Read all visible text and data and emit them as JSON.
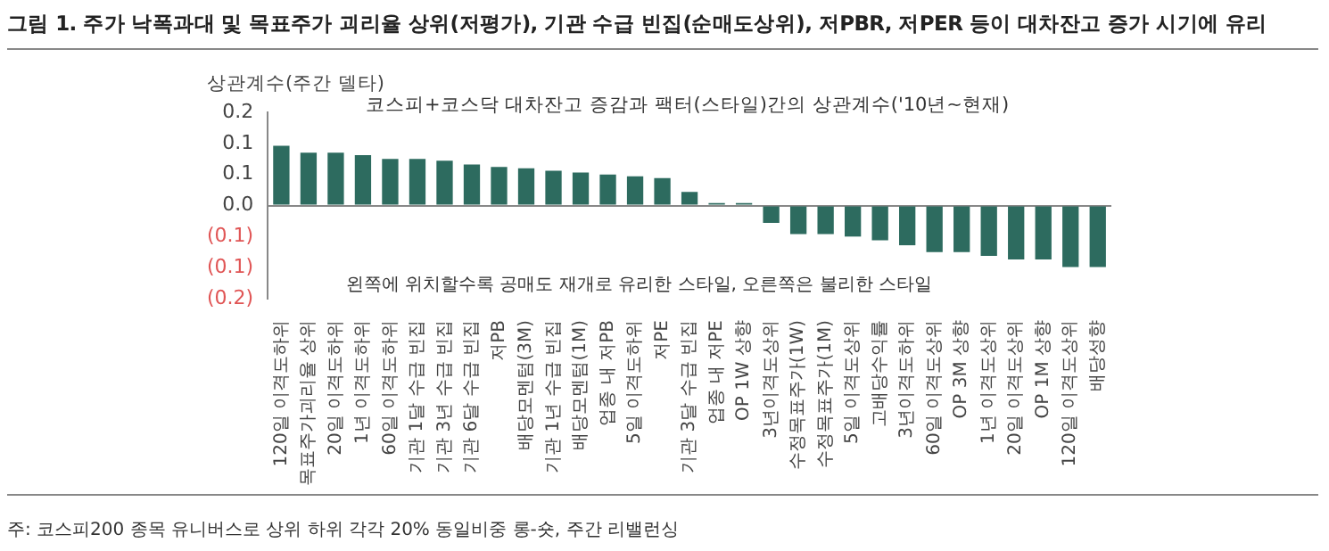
{
  "chart_data": {
    "type": "bar",
    "title": "그림 1. 주가 낙폭과대 및 목표주가 괴리율 상위(저평가), 기관 수급 빈집(순매도상위), 저PBR, 저PER 등이 대차잔고 증가 시기에 유리",
    "subtitle": "코스피+코스닥 대차잔고 증감과 팩터(스타일)간의 상관계수('10년~현재)",
    "ylabel": "상관계수(주간 델타)",
    "categories": [
      "120일 이격도하위",
      "목표주가괴리율 상위",
      "20일 이격도하위",
      "1년 이격도하위",
      "60일 이격도하위",
      "기관 1달 수급 빈집",
      "기관 3년 수급 빈집",
      "기관 6달 수급 빈집",
      "저PB",
      "배당모멘텀(3M)",
      "기관 1년 수급 빈집",
      "배당모멘텀(1M)",
      "업종 내 저PB",
      "5일 이격도하위",
      "저PE",
      "기관 3달 수급 빈집",
      "업종 내 저PE",
      "OP 1W 상향",
      "3년이격도상위",
      "수정목표주가(1W)",
      "수정목표주가(1M)",
      "5일 이격도상위",
      "고배당수익률",
      "3년이격도하위",
      "60일 이격도상위",
      "OP 3M 상향",
      "1년 이격도상위",
      "20일 이격도상위",
      "OP 1M 상향",
      "120일 이격도상위",
      "배당성향"
    ],
    "values": [
      0.096,
      0.085,
      0.085,
      0.081,
      0.075,
      0.075,
      0.072,
      0.066,
      0.062,
      0.06,
      0.056,
      0.053,
      0.05,
      0.047,
      0.044,
      0.022,
      0.004,
      0.004,
      -0.028,
      -0.046,
      -0.046,
      -0.05,
      -0.056,
      -0.064,
      -0.075,
      -0.075,
      -0.081,
      -0.087,
      -0.087,
      -0.099,
      -0.099
    ],
    "color": "#2d6b5f",
    "ylim": [
      -0.15,
      0.15
    ],
    "yticks": [
      {
        "value": 0.15,
        "label": "0.2"
      },
      {
        "value": 0.1,
        "label": "0.1"
      },
      {
        "value": 0.05,
        "label": "0.1"
      },
      {
        "value": 0,
        "label": "0.0"
      },
      {
        "value": -0.05,
        "label": "(0.1)"
      },
      {
        "value": -0.1,
        "label": "(0.1)"
      },
      {
        "value": -0.15,
        "label": "(0.2)"
      }
    ],
    "annotations": [
      "왼쪽에 위치할수록 공매도 재개로 유리한 스타일, 오른쪽은 불리한 스타일",
      "주: 코스피200 종목 유니버스로 상위 하위 각각 20% 동일비중 롱-숏, 주간 리밸런싱"
    ]
  }
}
